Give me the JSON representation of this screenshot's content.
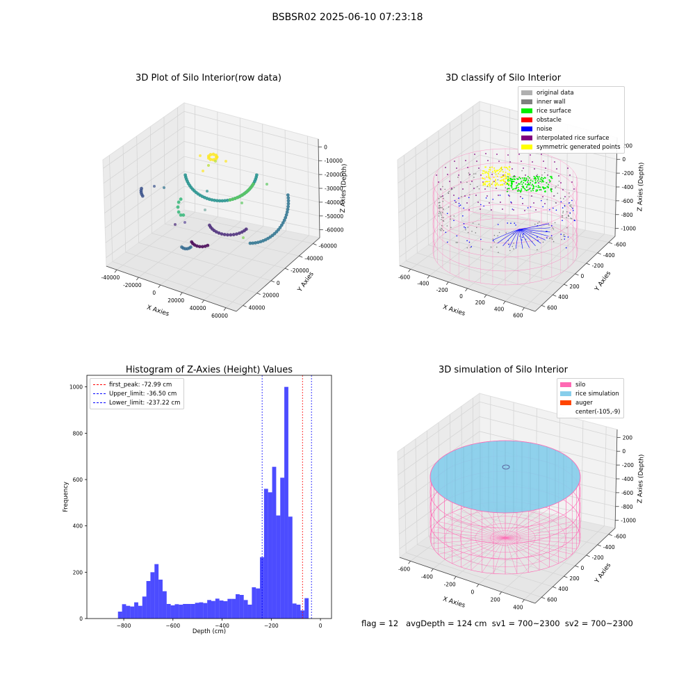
{
  "suptitle": "BSBSR02 2025-06-10 07:23:18",
  "bottom_text": "flag = 12   avgDepth = 124 cm  sv1 = 700~2300  sv2 = 700~2300",
  "chart_data": [
    {
      "type": "scatter",
      "title": "3D Plot of Silo Interior(row data)",
      "xlabel": "X Axies",
      "ylabel": "Y Axies",
      "zlabel": "Z Axies (Depth)",
      "xticks": [
        "-40000",
        "-20000",
        "0",
        "20000",
        "40000",
        "60000"
      ],
      "yticks": [
        "-60000",
        "-40000",
        "-20000",
        "0",
        "20000",
        "40000"
      ],
      "zticks": [
        "0",
        "-10000",
        "-20000",
        "-30000",
        "-40000",
        "-50000",
        "-60000"
      ],
      "colormap": "viridis"
    },
    {
      "type": "scatter",
      "title": "3D classify of Silo Interior",
      "xlabel": "X Axies",
      "ylabel": "Y Axies",
      "zlabel": "Z Axies (Depth)",
      "xticks": [
        "-600",
        "-400",
        "-200",
        "0",
        "200",
        "400",
        "600"
      ],
      "yticks": [
        "-600",
        "-400",
        "-200",
        "0",
        "200",
        "400",
        "600"
      ],
      "zticks": [
        "200",
        "0",
        "-200",
        "-400",
        "-600",
        "-800",
        "-1000"
      ],
      "legend": [
        {
          "label": "original data",
          "color": "#b0b0b0"
        },
        {
          "label": "inner wall",
          "color": "#808080"
        },
        {
          "label": "rice surface",
          "color": "#00ee00"
        },
        {
          "label": "obstacle",
          "color": "#ff0000"
        },
        {
          "label": "noise",
          "color": "#0000ff"
        },
        {
          "label": "interpolated rice surface",
          "color": "#800080"
        },
        {
          "label": "symmetric generated points",
          "color": "#ffff00"
        }
      ]
    },
    {
      "type": "bar",
      "title": "Histogram of Z-Axies (Height) Values",
      "xlabel": "Depth (cm)",
      "ylabel": "Frequency",
      "xlim": [
        -950,
        45
      ],
      "ylim": [
        0,
        1050
      ],
      "xticks": [
        -800,
        -600,
        -400,
        -200,
        0
      ],
      "yticks": [
        0,
        200,
        400,
        600,
        800,
        1000
      ],
      "bin_width": 16.5,
      "bins_start": [
        -823.5,
        -807,
        -790.5,
        -774,
        -757.5,
        -741,
        -724.5,
        -708,
        -691.5,
        -675,
        -658.5,
        -642,
        -625.5,
        -609,
        -592.5,
        -576,
        -559.5,
        -543,
        -526.5,
        -510,
        -493.5,
        -477,
        -460.5,
        -444,
        -427.5,
        -411,
        -394.5,
        -378,
        -361.5,
        -345,
        -328.5,
        -312,
        -295.5,
        -279,
        -262.5,
        -246,
        -229.5,
        -213,
        -196.5,
        -180,
        -163.5,
        -147,
        -130.5,
        -114,
        -97.5,
        -81,
        -64.5,
        -48,
        -31.5,
        -15
      ],
      "values": [
        30,
        62,
        55,
        52,
        70,
        55,
        95,
        162,
        200,
        235,
        168,
        118,
        63,
        57,
        62,
        60,
        63,
        63,
        63,
        68,
        70,
        67,
        80,
        76,
        86,
        78,
        75,
        85,
        85,
        105,
        102,
        80,
        60,
        135,
        130,
        265,
        560,
        545,
        655,
        445,
        608,
        1000,
        440,
        65,
        60,
        35,
        88,
        0,
        0,
        0
      ],
      "bar_color": "#0000ff",
      "vlines": [
        {
          "label": "first_peak: -72.99 cm",
          "x": -72.99,
          "color": "#ff0000"
        },
        {
          "label": "Upper_limit: -36.50 cm",
          "x": -36.5,
          "color": "#0000ff"
        },
        {
          "label": "Lower_limit: -237.22 cm",
          "x": -237.22,
          "color": "#0000ff"
        }
      ]
    },
    {
      "type": "surface",
      "title": "3D simulation of Silo Interior",
      "xlabel": "X Axies",
      "ylabel": "Y Axies",
      "zlabel": "Z Axies (Depth)",
      "xticks": [
        "-600",
        "-400",
        "-200",
        "0",
        "200",
        "400"
      ],
      "yticks": [
        "-600",
        "-400",
        "-200",
        "0",
        "200",
        "400",
        "600"
      ],
      "zticks": [
        "200",
        "0",
        "-200",
        "-400",
        "-600",
        "-800",
        "-1000"
      ],
      "legend": [
        {
          "label": "silo",
          "color": "#ff69b4"
        },
        {
          "label": "rice simulation",
          "color": "#87ceeb"
        },
        {
          "label": "auger",
          "color": "#ff4500"
        },
        {
          "label": "center(-105,-9)",
          "color": ""
        }
      ]
    }
  ]
}
